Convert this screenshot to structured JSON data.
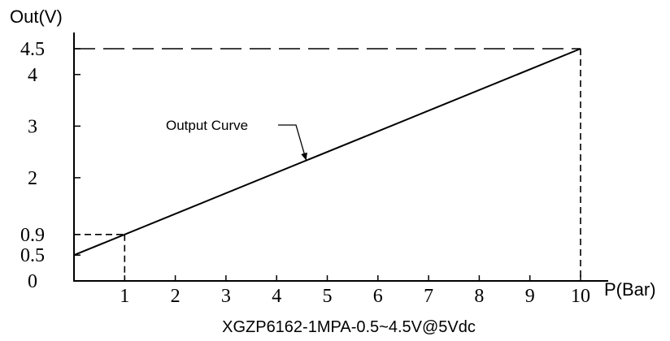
{
  "chart_data": {
    "type": "line",
    "title": "",
    "caption": "XGZP6162-1MPA-0.5~4.5V@5Vdc",
    "xlabel": "P(Bar)",
    "ylabel": "Out(V)",
    "xlim": [
      0,
      10
    ],
    "ylim": [
      0,
      4.5
    ],
    "x_ticks": [
      {
        "value": 1,
        "label": "1"
      },
      {
        "value": 2,
        "label": "2"
      },
      {
        "value": 3,
        "label": "3"
      },
      {
        "value": 4,
        "label": "4"
      },
      {
        "value": 5,
        "label": "5"
      },
      {
        "value": 6,
        "label": "6"
      },
      {
        "value": 7,
        "label": "7"
      },
      {
        "value": 8,
        "label": "8"
      },
      {
        "value": 9,
        "label": "9"
      },
      {
        "value": 10,
        "label": "10"
      }
    ],
    "y_ticks": [
      {
        "value": 0,
        "label": "0"
      },
      {
        "value": 0.5,
        "label": "0.5"
      },
      {
        "value": 0.9,
        "label": "0.9"
      },
      {
        "value": 2,
        "label": "2"
      },
      {
        "value": 3,
        "label": "3"
      },
      {
        "value": 4,
        "label": "4"
      },
      {
        "value": 4.5,
        "label": "4.5"
      }
    ],
    "series": [
      {
        "name": "",
        "x": [
          0,
          10
        ],
        "y": [
          0.5,
          4.5
        ]
      }
    ],
    "reference_points": [
      {
        "x": 1,
        "y": 0.9
      },
      {
        "x": 10,
        "y": 4.5
      }
    ],
    "annotations": [
      {
        "text": "Output Curve",
        "x": 4.6,
        "y": 2.4
      }
    ],
    "grid": false,
    "legend": "none",
    "color": "#000000"
  }
}
